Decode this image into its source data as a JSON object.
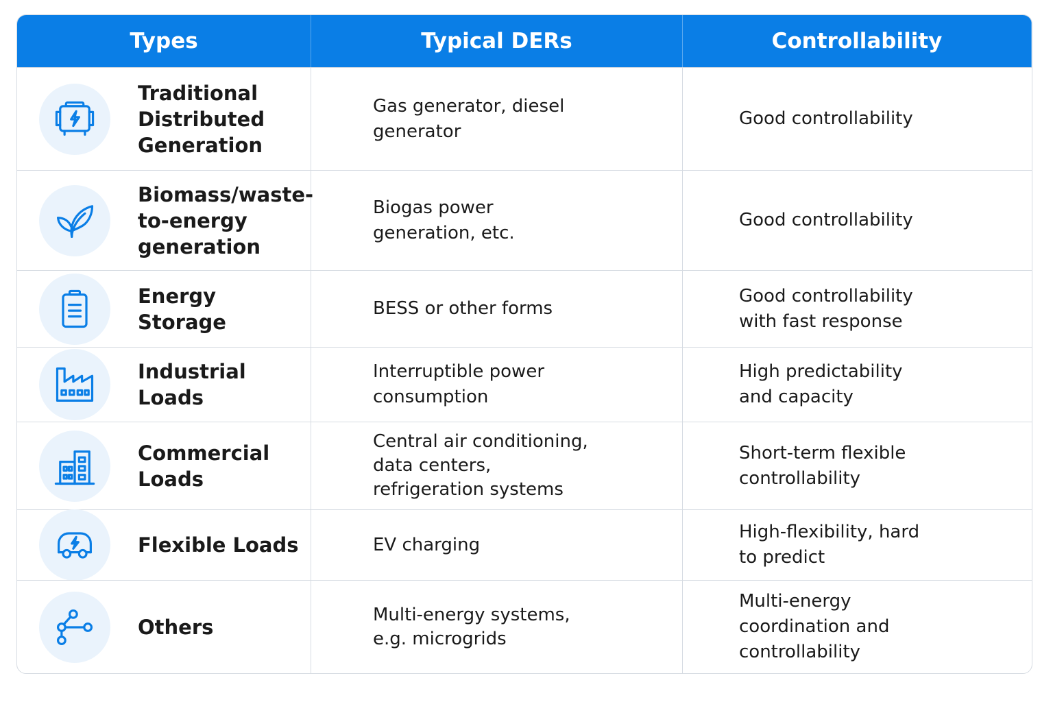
{
  "headers": [
    "Types",
    "Typical DERs",
    "Controllability"
  ],
  "rows": [
    {
      "icon": "generator-icon",
      "type": "Traditional\nDistributed\nGeneration",
      "ders": "Gas generator, diesel\ngenerator",
      "control": "Good controllability"
    },
    {
      "icon": "leaf-icon",
      "type": "Biomass/waste-\nto-energy\ngeneration",
      "ders": "Biogas power\ngeneration, etc.",
      "control": "Good controllability"
    },
    {
      "icon": "battery-icon",
      "type": "Energy Storage",
      "ders": "BESS or other forms",
      "control": "Good controllability\nwith fast response"
    },
    {
      "icon": "factory-icon",
      "type": "Industrial Loads",
      "ders": "Interruptible power\nconsumption",
      "control": "High predictability\nand capacity"
    },
    {
      "icon": "building-icon",
      "type": "Commercial Loads",
      "ders": "Central air conditioning,\ndata centers,\nrefrigeration systems",
      "control": "Short-term flexible\ncontrollability"
    },
    {
      "icon": "electric-car-icon",
      "type": "Flexible Loads",
      "ders": "EV charging",
      "control": "High-flexibility, hard\nto predict"
    },
    {
      "icon": "network-nodes-icon",
      "type": "Others",
      "ders": "Multi-energy systems,\ne.g. microgrids",
      "control": "Multi-energy\ncoordination and\ncontrollability"
    }
  ],
  "colors": {
    "header_bg": "#0a7ee6",
    "icon_stroke": "#0a7ee6",
    "icon_bg": "#eaf3fc",
    "border": "#d6dbe2"
  }
}
